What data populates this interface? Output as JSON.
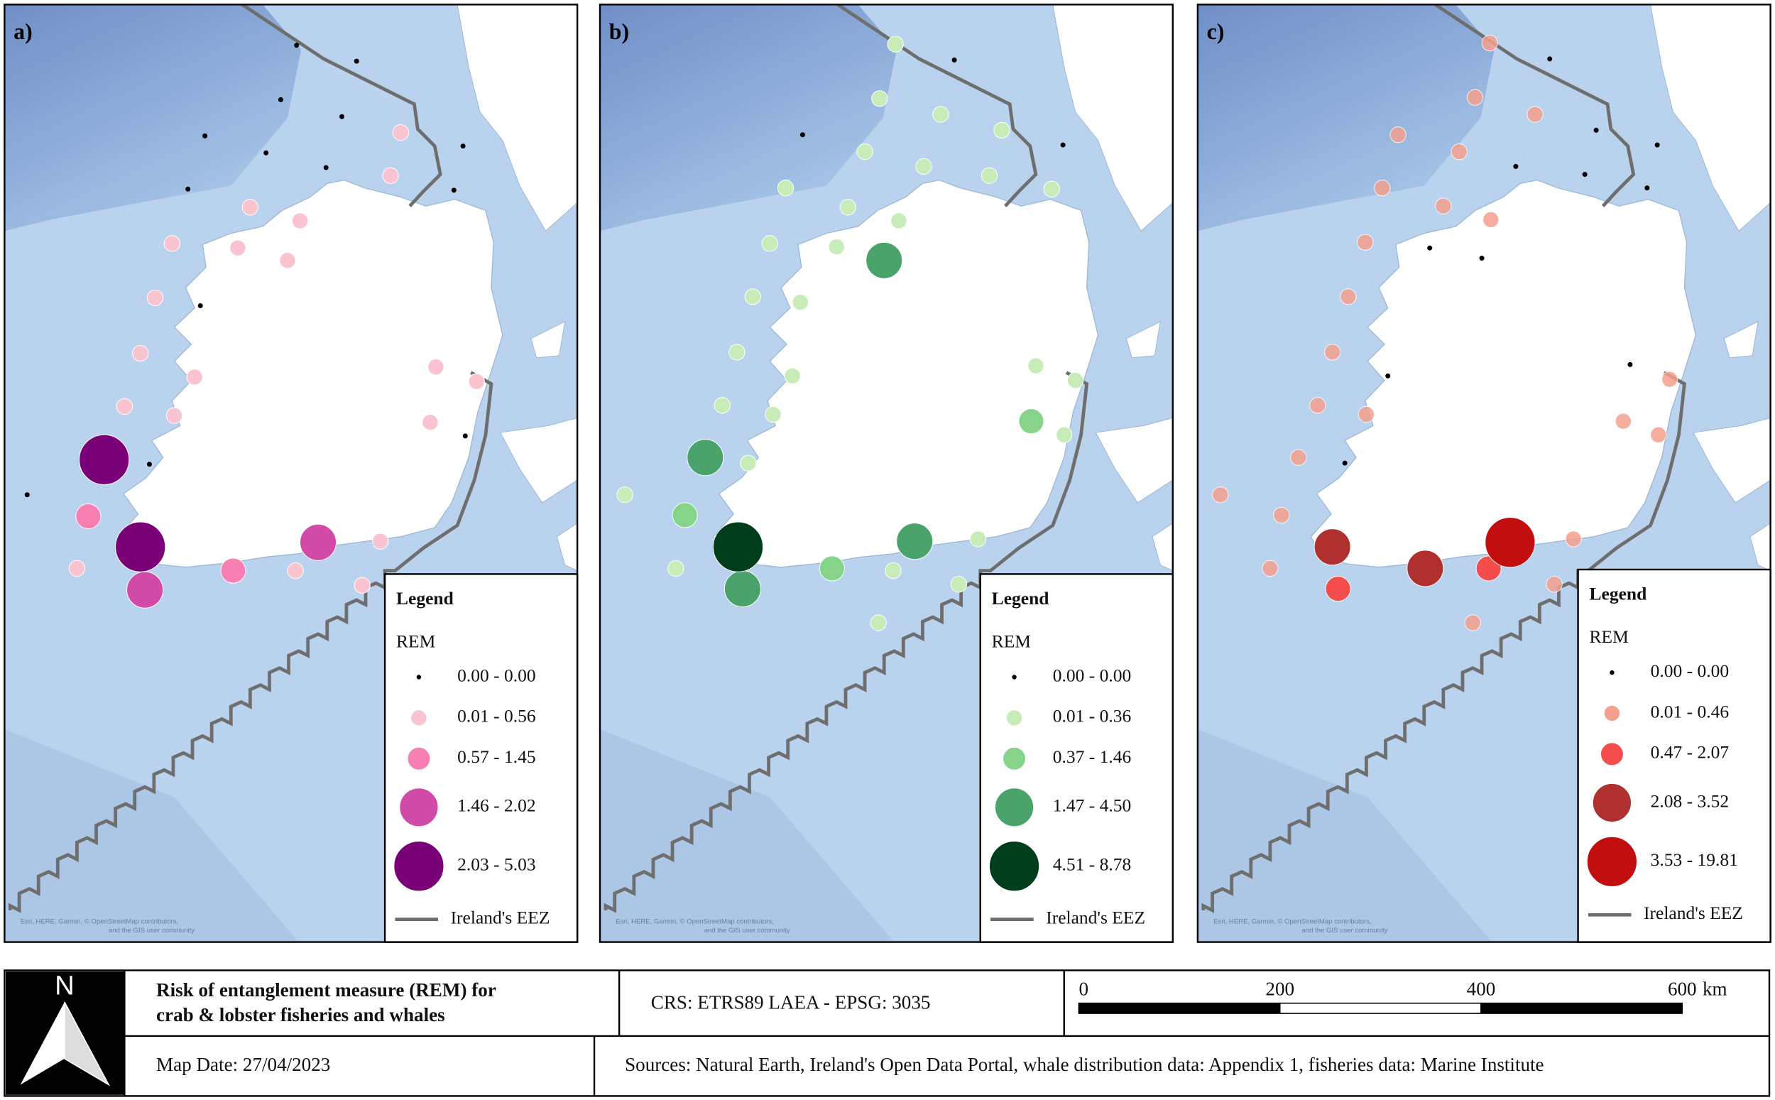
{
  "panels": [
    {
      "label": "a)",
      "legend": {
        "title": "Legend",
        "field": "REM",
        "classes": [
          "0.00 - 0.00",
          "0.01 - 0.56",
          "0.57 - 1.45",
          "1.46 - 2.02",
          "2.03 - 5.03"
        ],
        "colors": [
          "#000000",
          "#f9c4cf",
          "#f77fb1",
          "#d24aa7",
          "#7a0077"
        ],
        "eez": "Ireland's EEZ"
      },
      "attribution": [
        "Esri, HERE, Garmin, © OpenStreetMap contributors,",
        "and the GIS user community"
      ]
    },
    {
      "label": "b)",
      "legend": {
        "title": "Legend",
        "field": "REM",
        "classes": [
          "0.00 - 0.00",
          "0.01 - 0.36",
          "0.37 - 1.46",
          "1.47 - 4.50",
          "4.51 - 8.78"
        ],
        "colors": [
          "#000000",
          "#c8ecb8",
          "#86d48a",
          "#4aa36b",
          "#003d1a"
        ],
        "eez": "Ireland's EEZ"
      },
      "attribution": [
        "Esri, HERE, Garmin, © OpenStreetMap contributors,",
        "and the GIS user community"
      ]
    },
    {
      "label": "c)",
      "legend": {
        "title": "Legend",
        "field": "REM",
        "classes": [
          "0.00 - 0.00",
          "0.01 - 0.46",
          "0.47 - 2.07",
          "2.08 - 3.52",
          "3.53 - 19.81"
        ],
        "colors": [
          "#000000",
          "#f4a08e",
          "#f54c4c",
          "#b03030",
          "#c20e0e"
        ],
        "eez": "Ireland's EEZ"
      },
      "attribution": [
        "Esri, HERE, Garmin, © OpenStreetMap contributors,",
        "and the GIS user community"
      ]
    }
  ],
  "footer": {
    "north": "N",
    "title": [
      "Risk of entanglement measure (REM) for",
      "crab & lobster fisheries and whales"
    ],
    "crs": "CRS: ETRS89 LAEA - EPSG: 3035",
    "scale": {
      "ticks": [
        0,
        200,
        400,
        600
      ],
      "unit": "km"
    },
    "date": "Map Date: 27/04/2023",
    "sources": "Sources:  Natural Earth, Ireland's Open Data Portal, whale distribution data: Appendix 1, fisheries data: Marine Institute"
  }
}
